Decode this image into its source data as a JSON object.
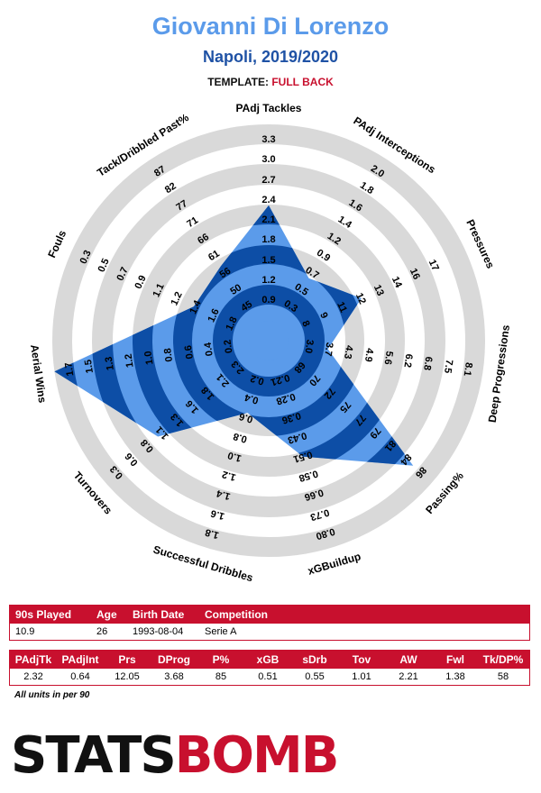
{
  "header": {
    "title": "Giovanni Di Lorenzo",
    "subtitle": "Napoli, 2019/2020",
    "template_label": "TEMPLATE:",
    "template_value": "FULL BACK"
  },
  "colors": {
    "light": "#5b9bea",
    "dark": "#0d4ea6",
    "ring": "#d9d9d9",
    "accent": "#c8102e"
  },
  "chart_data": {
    "type": "radar",
    "player": "Giovanni Di Lorenzo",
    "axes": [
      {
        "label": "PAdj Tackles",
        "ticks": [
          "0.9",
          "1.2",
          "1.5",
          "1.8",
          "2.1",
          "2.4",
          "2.7",
          "3.0",
          "3.3"
        ],
        "value": 2.32
      },
      {
        "label": "PAdj Interceptions",
        "ticks": [
          "0.3",
          "0.5",
          "0.7",
          "0.9",
          "1.2",
          "1.4",
          "1.6",
          "1.8",
          "2.0"
        ],
        "value": 0.64
      },
      {
        "label": "Pressures",
        "ticks": [
          "8",
          "9",
          "11",
          "12",
          "13",
          "14",
          "16",
          "17"
        ],
        "value": 12.05
      },
      {
        "label": "Deep Progressions",
        "ticks": [
          "3.0",
          "3.7",
          "4.3",
          "4.9",
          "5.6",
          "6.2",
          "6.8",
          "7.5",
          "8.1"
        ],
        "value": 3.68
      },
      {
        "label": "Passing%",
        "ticks": [
          "68",
          "70",
          "72",
          "75",
          "77",
          "79",
          "81",
          "84",
          "86"
        ],
        "value": 85
      },
      {
        "label": "xGBuildup",
        "ticks": [
          "0.21",
          "0.28",
          "0.36",
          "0.43",
          "0.51",
          "0.58",
          "0.66",
          "0.73",
          "0.80"
        ],
        "value": 0.51
      },
      {
        "label": "Successful Dribbles",
        "ticks": [
          "0.2",
          "0.4",
          "0.6",
          "0.8",
          "1.0",
          "1.2",
          "1.4",
          "1.6",
          "1.8"
        ],
        "value": 0.55
      },
      {
        "label": "Turnovers",
        "ticks": [
          "2.3",
          "2.1",
          "1.8",
          "1.6",
          "1.3",
          "1.1",
          "0.8",
          "0.6",
          "0.3"
        ],
        "value": 1.01
      },
      {
        "label": "Aerial Wins",
        "ticks": [
          "0.2",
          "0.4",
          "0.6",
          "0.8",
          "1.0",
          "1.2",
          "1.3",
          "1.5",
          "1.7"
        ],
        "value": 2.21
      },
      {
        "label": "Fouls",
        "ticks": [
          "1.8",
          "1.6",
          "1.4",
          "1.2",
          "1.1",
          "0.9",
          "0.7",
          "0.5",
          "0.3"
        ],
        "value": 1.38
      },
      {
        "label": "Tack/Dribbled Past%",
        "ticks": [
          "45",
          "50",
          "56",
          "61",
          "66",
          "71",
          "77",
          "82",
          "87"
        ],
        "value": 58
      }
    ]
  },
  "info_table": {
    "headers": [
      "90s Played",
      "Age",
      "Birth Date",
      "Competition"
    ],
    "values": [
      "10.9",
      "26",
      "1993-08-04",
      "Serie A"
    ]
  },
  "stats_table": {
    "headers": [
      "PAdjTk",
      "PAdjInt",
      "Prs",
      "DProg",
      "P%",
      "xGB",
      "sDrb",
      "Tov",
      "AW",
      "Fwl",
      "Tk/DP%"
    ],
    "values": [
      "2.32",
      "0.64",
      "12.05",
      "3.68",
      "85",
      "0.51",
      "0.55",
      "1.01",
      "2.21",
      "1.38",
      "58"
    ]
  },
  "note": "All units in per 90",
  "logo": {
    "part1": "STATS",
    "part2": "BOMB"
  }
}
